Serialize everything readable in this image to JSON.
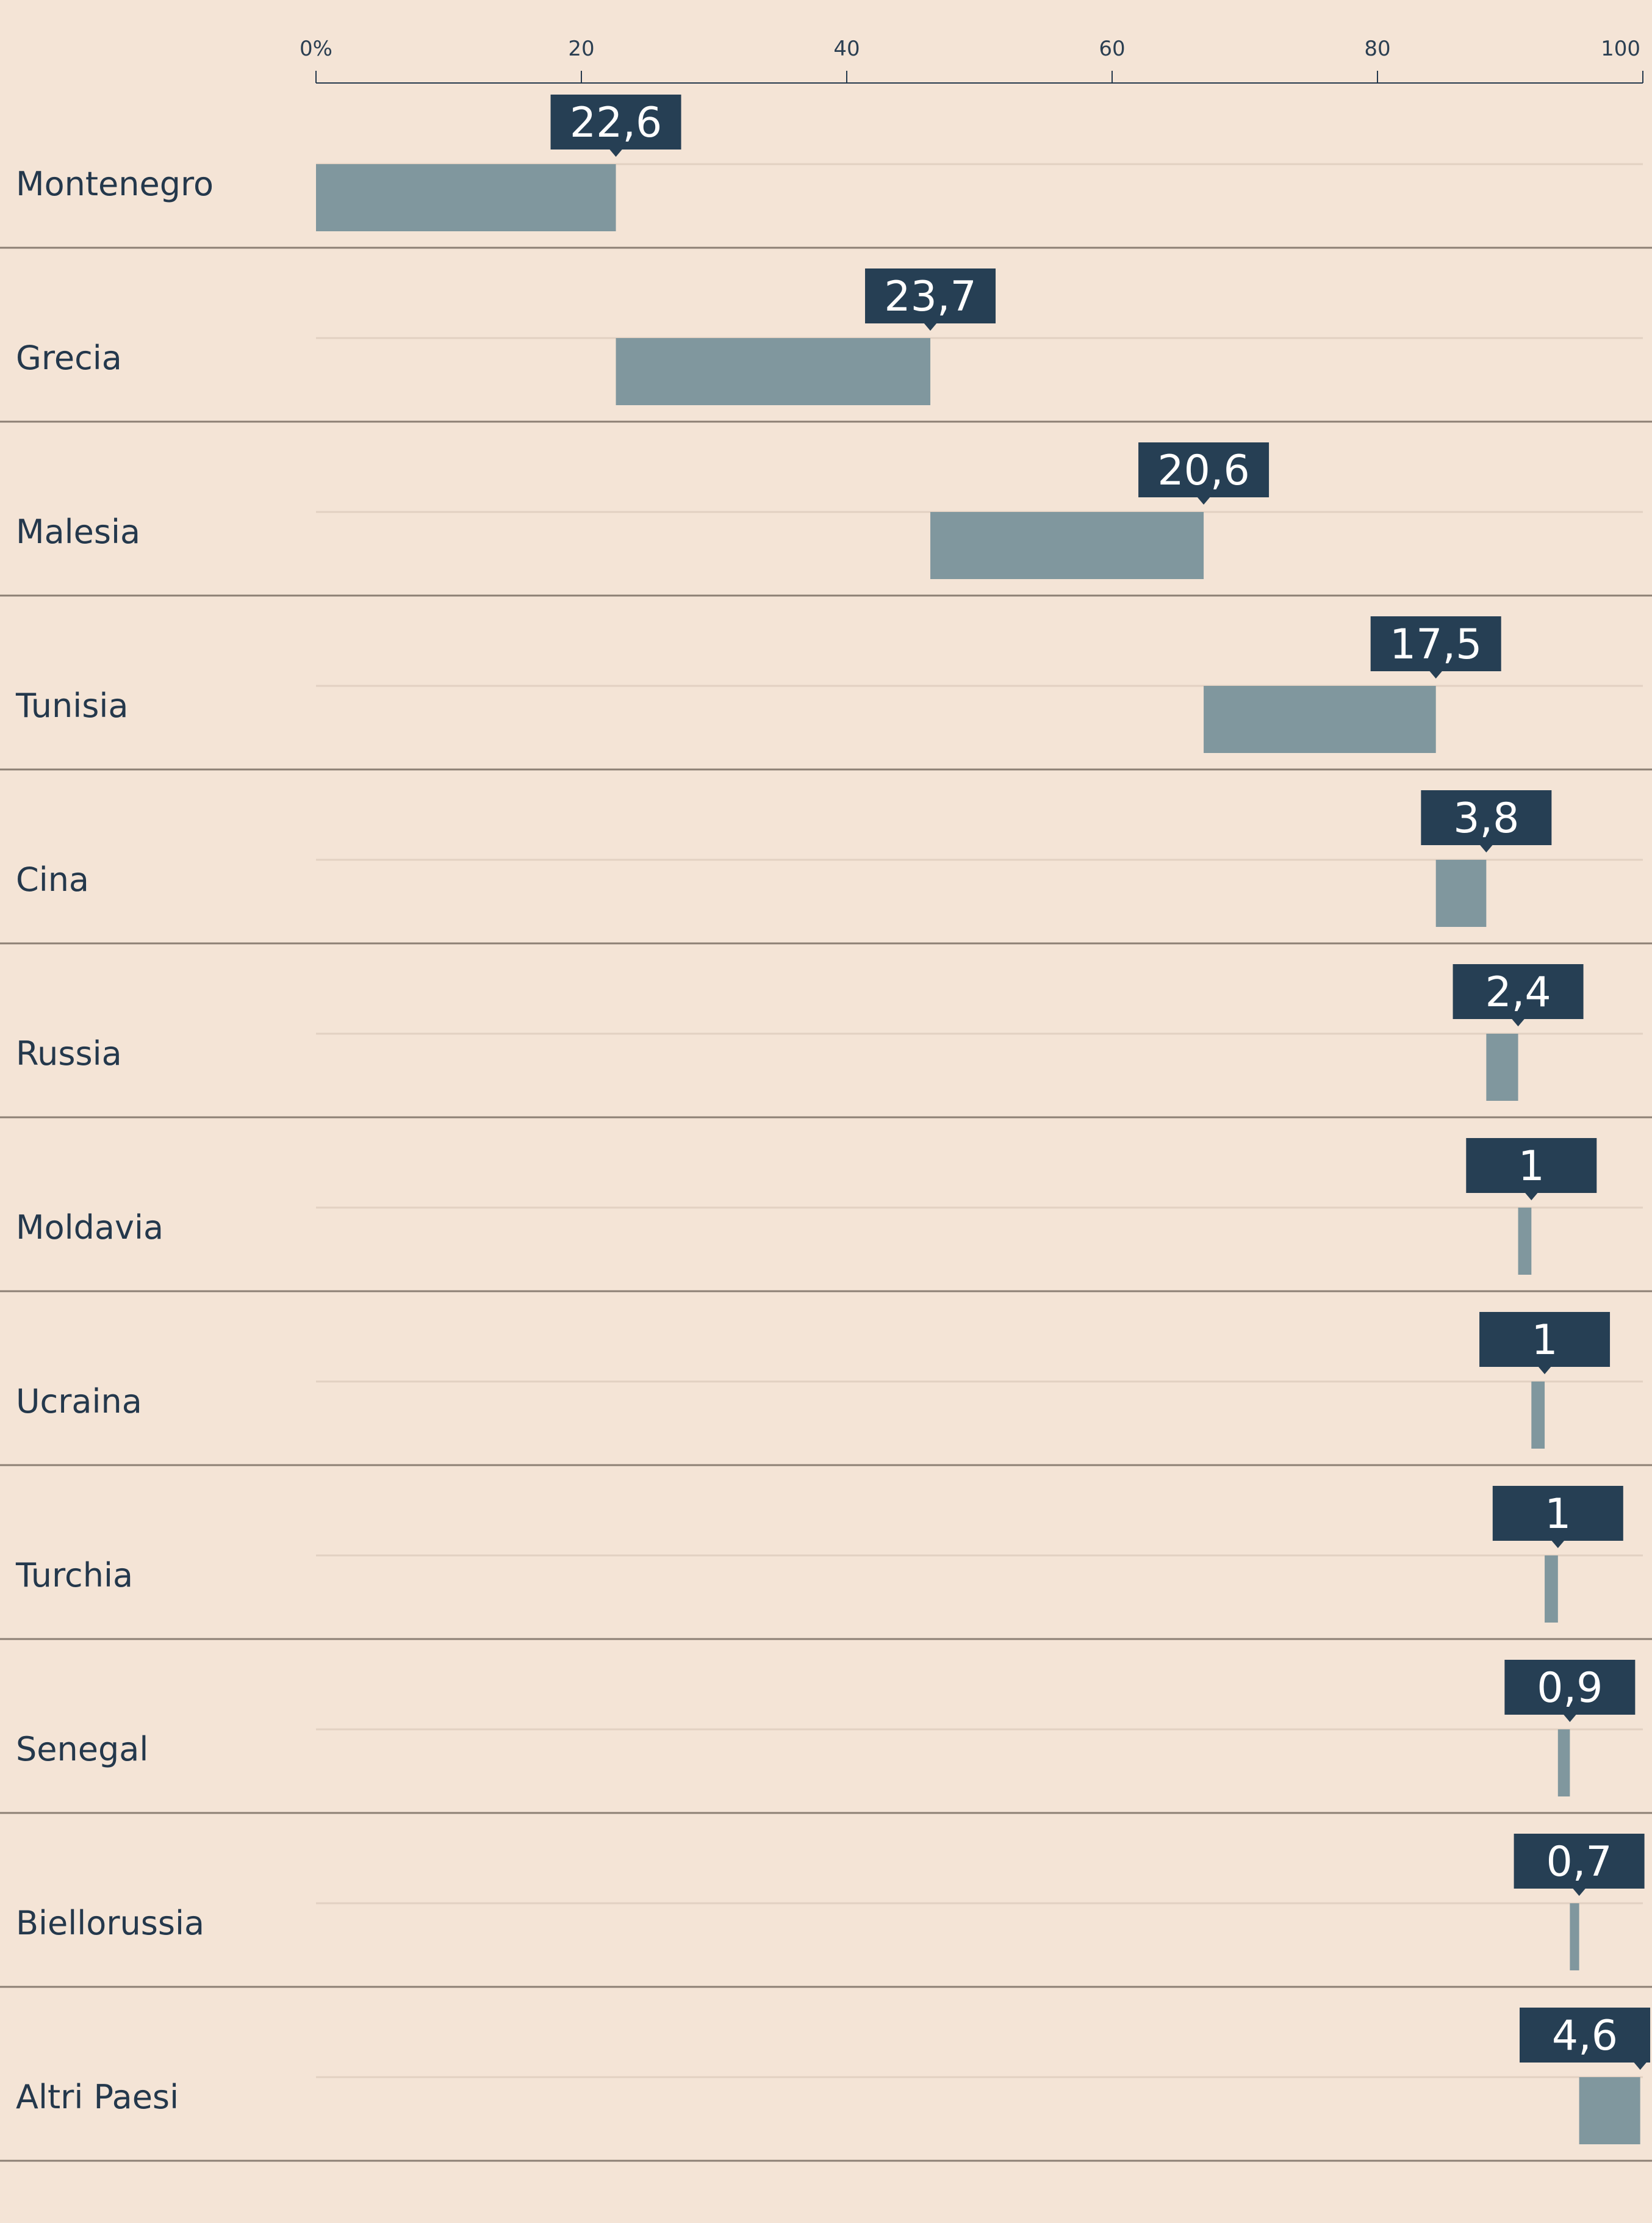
{
  "chart_data": {
    "type": "bar",
    "subtype": "waterfall-stacked-horizontal",
    "title": "",
    "xlabel": "",
    "ylabel": "",
    "xlim": [
      0,
      100
    ],
    "ticks": [
      0,
      20,
      40,
      60,
      80,
      100
    ],
    "tick_labels": [
      "0%",
      "20",
      "40",
      "60",
      "80",
      "100"
    ],
    "categories": [
      "Montenegro",
      "Grecia",
      "Malesia",
      "Tunisia",
      "Cina",
      "Russia",
      "Moldavia",
      "Ucraina",
      "Turchia",
      "Senegal",
      "Biellorussia",
      "Altri Paesi"
    ],
    "values": [
      22.6,
      23.7,
      20.6,
      17.5,
      3.8,
      2.4,
      1,
      1,
      1,
      0.9,
      0.7,
      4.6
    ],
    "value_labels": [
      "22,6",
      "23,7",
      "20,6",
      "17,5",
      "3,8",
      "2,4",
      "1",
      "1",
      "1",
      "0,9",
      "0,7",
      "4,6"
    ]
  },
  "colors": {
    "background": "#f4e4d6",
    "bar": "#80979e",
    "label_box": "#263f54",
    "text": "#24384c",
    "separator": "#8c7f74",
    "gridline": "#e2d1c2",
    "axis": "#24384c"
  }
}
